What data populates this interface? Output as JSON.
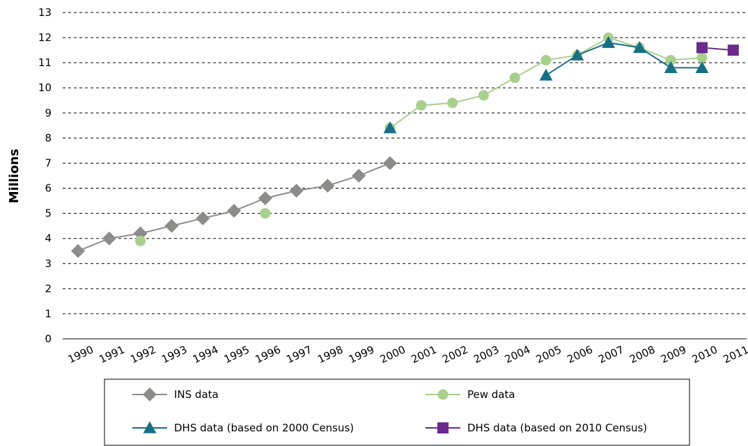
{
  "chart_data": {
    "type": "line",
    "xlabel": "",
    "ylabel": "Millions",
    "ylim": [
      0,
      13
    ],
    "yticks": [
      0,
      1,
      2,
      3,
      4,
      5,
      6,
      7,
      8,
      9,
      10,
      11,
      12,
      13
    ],
    "categories": [
      "1990",
      "1991",
      "1992",
      "1993",
      "1994",
      "1995",
      "1996",
      "1997",
      "1998",
      "1999",
      "2000",
      "2001",
      "2002",
      "2003",
      "2004",
      "2005",
      "2006",
      "2007",
      "2008",
      "2009",
      "2010",
      "2011"
    ],
    "grid": true,
    "legend_position": "bottom",
    "series": [
      {
        "name": "INS data",
        "color": "#8c8c8a",
        "marker": "diamond",
        "connected": true,
        "points": [
          {
            "x": "1990",
            "y": 3.5
          },
          {
            "x": "1991",
            "y": 4.0
          },
          {
            "x": "1992",
            "y": 4.2
          },
          {
            "x": "1993",
            "y": 4.5
          },
          {
            "x": "1994",
            "y": 4.8
          },
          {
            "x": "1995",
            "y": 5.1
          },
          {
            "x": "1996",
            "y": 5.6
          },
          {
            "x": "1997",
            "y": 5.9
          },
          {
            "x": "1998",
            "y": 6.1
          },
          {
            "x": "1999",
            "y": 6.5
          },
          {
            "x": "2000",
            "y": 7.0
          }
        ]
      },
      {
        "name": "Pew data",
        "color": "#a8d08d",
        "marker": "circle",
        "connected": false,
        "points": [
          {
            "x": "1992",
            "y": 3.9
          },
          {
            "x": "1996",
            "y": 5.0
          }
        ]
      },
      {
        "name": "Pew data",
        "color": "#a8d08d",
        "marker": "circle",
        "connected": true,
        "points": [
          {
            "x": "2000",
            "y": 8.4
          },
          {
            "x": "2001",
            "y": 9.3
          },
          {
            "x": "2002",
            "y": 9.4
          },
          {
            "x": "2003",
            "y": 9.7
          },
          {
            "x": "2004",
            "y": 10.4
          },
          {
            "x": "2005",
            "y": 11.1
          },
          {
            "x": "2006",
            "y": 11.3
          },
          {
            "x": "2007",
            "y": 12.0
          },
          {
            "x": "2008",
            "y": 11.6
          },
          {
            "x": "2009",
            "y": 11.1
          },
          {
            "x": "2010",
            "y": 11.2
          }
        ]
      },
      {
        "name": "DHS data (based on 2000 Census)",
        "color": "#176f86",
        "marker": "triangle",
        "connected": false,
        "points": [
          {
            "x": "2000",
            "y": 8.4
          }
        ]
      },
      {
        "name": "DHS data (based on 2000 Census)",
        "color": "#176f86",
        "marker": "triangle",
        "connected": true,
        "points": [
          {
            "x": "2005",
            "y": 10.5
          },
          {
            "x": "2006",
            "y": 11.3
          },
          {
            "x": "2007",
            "y": 11.8
          },
          {
            "x": "2008",
            "y": 11.6
          },
          {
            "x": "2009",
            "y": 10.8
          },
          {
            "x": "2010",
            "y": 10.8
          }
        ]
      },
      {
        "name": "DHS data (based on 2010 Census)",
        "color": "#6b2a8c",
        "marker": "square",
        "connected": true,
        "points": [
          {
            "x": "2010",
            "y": 11.6
          },
          {
            "x": "2011",
            "y": 11.5
          }
        ]
      }
    ],
    "legend": [
      {
        "label": "INS data",
        "color": "#8c8c8a",
        "marker": "diamond"
      },
      {
        "label": "Pew data",
        "color": "#a8d08d",
        "marker": "circle"
      },
      {
        "label": "DHS data (based on 2000 Census)",
        "color": "#176f86",
        "marker": "triangle"
      },
      {
        "label": "DHS data (based on 2010 Census)",
        "color": "#6b2a8c",
        "marker": "square"
      }
    ]
  }
}
